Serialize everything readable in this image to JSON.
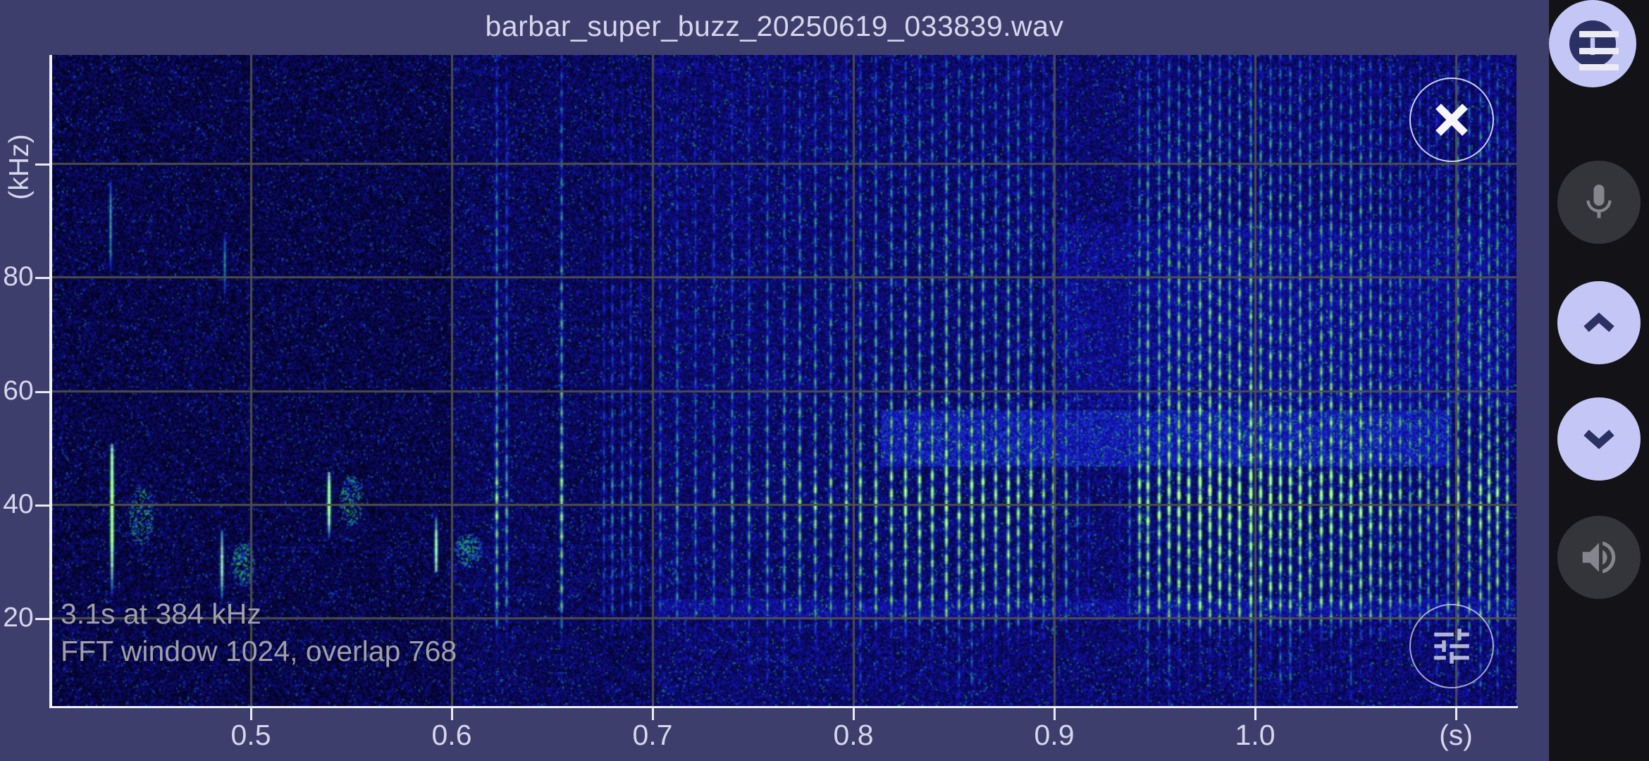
{
  "title": "barbar_super_buzz_20250619_033839.wav",
  "plot": {
    "y_axis": {
      "title": "(kHz)",
      "tick_labels": [
        "80",
        "60",
        "40",
        "20"
      ]
    },
    "x_axis": {
      "tick_labels": [
        "0.5",
        "0.6",
        "0.7",
        "0.8",
        "0.9",
        "1.0"
      ],
      "unit_label": "(s)"
    },
    "overlay": {
      "duration_line": "3.1s at 384 kHz",
      "fft_line": "FFT window 1024, overlap 768"
    }
  },
  "spectrogram": {
    "type": "heatmap",
    "time_axis_unit": "s",
    "freq_axis_unit": "kHz",
    "visible_time_ticks": [
      0.5,
      0.6,
      0.7,
      0.8,
      0.9,
      1.0
    ],
    "visible_freq_ticks": [
      80,
      60,
      40,
      20
    ],
    "content_note": "sparse bat echolocation chirps near 30-50 kHz from 0.42-0.62 s, isolated full-band pulses 0.62-0.72 s, dense feeding-buzz pulse train 0.72-1.13 s brightest at 36-46 kHz with a silent gap near 0.92-0.94 s"
  },
  "sidebar": {
    "menu_icon": "hamburger-menu",
    "mic_icon": "microphone",
    "scroll_up_icon": "chevron-up",
    "scroll_down_icon": "chevron-down",
    "volume_icon": "volume-up",
    "info_label": "i"
  },
  "colors": {
    "background": "#3e3e6c",
    "sidebar": "#131317",
    "accent_circle": "#c4c7f6",
    "accent_dark": "#2c3164",
    "button_grey": "#34343b",
    "glyph_grey": "#85858d",
    "tick_text": "#d6d6ec",
    "overlay_text": "#9f9fa4"
  }
}
